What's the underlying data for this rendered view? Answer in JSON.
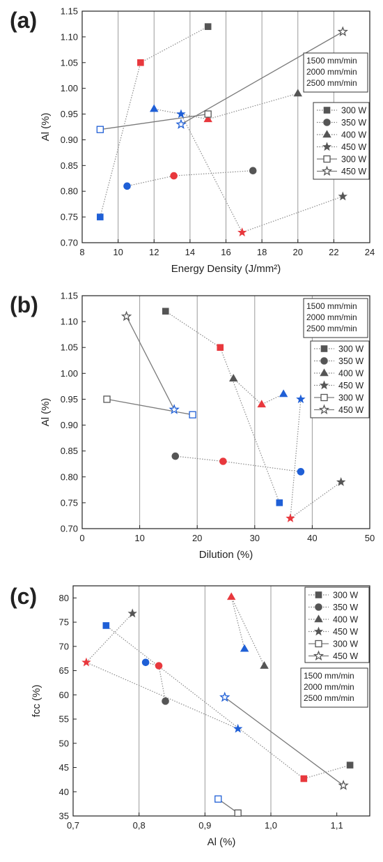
{
  "legend_power": [
    {
      "label": "300 W",
      "marker": "square"
    },
    {
      "label": "350 W",
      "marker": "circle"
    },
    {
      "label": "400 W",
      "marker": "triangle"
    },
    {
      "label": "450 W",
      "marker": "star"
    },
    {
      "label": "300 W",
      "marker": "square-open"
    },
    {
      "label": "450 W",
      "marker": "star-open"
    }
  ],
  "legend_speed": [
    {
      "label": "1500 mm/min",
      "color": "#222222"
    },
    {
      "label": "2000 mm/min",
      "color": "#e8383d"
    },
    {
      "label": "2500 mm/min",
      "color": "#1f5fd6"
    }
  ],
  "chart_data": [
    {
      "panel": "(a)",
      "type": "scatter",
      "xlabel": "Energy Density (J/mm²)",
      "ylabel": "Al (%)",
      "xlim": [
        8,
        24
      ],
      "ylim": [
        0.7,
        1.15
      ],
      "xticks": [
        "8",
        "10",
        "12",
        "14",
        "16",
        "18",
        "20",
        "22",
        "24"
      ],
      "yticks": [
        "0.70",
        "0.75",
        "0.80",
        "0.85",
        "0.90",
        "0.95",
        "1.00",
        "1.05",
        "1.10",
        "1.15"
      ],
      "grid": "vertical",
      "points": [
        {
          "x": 15.0,
          "y": 1.12,
          "marker": "square",
          "color": "#555555"
        },
        {
          "x": 11.25,
          "y": 1.05,
          "marker": "square",
          "color": "#e8383d"
        },
        {
          "x": 9.0,
          "y": 0.75,
          "marker": "square",
          "color": "#1f5fd6"
        },
        {
          "x": 17.5,
          "y": 0.84,
          "marker": "circle",
          "color": "#555555"
        },
        {
          "x": 13.1,
          "y": 0.83,
          "marker": "circle",
          "color": "#e8383d"
        },
        {
          "x": 10.5,
          "y": 0.81,
          "marker": "circle",
          "color": "#1f5fd6"
        },
        {
          "x": 20.0,
          "y": 0.99,
          "marker": "triangle",
          "color": "#555555"
        },
        {
          "x": 15.0,
          "y": 0.94,
          "marker": "triangle",
          "color": "#e8383d"
        },
        {
          "x": 12.0,
          "y": 0.96,
          "marker": "triangle",
          "color": "#1f5fd6"
        },
        {
          "x": 22.5,
          "y": 0.79,
          "marker": "star",
          "color": "#555555"
        },
        {
          "x": 16.9,
          "y": 0.72,
          "marker": "star",
          "color": "#e8383d"
        },
        {
          "x": 13.5,
          "y": 0.95,
          "marker": "star",
          "color": "#1f5fd6"
        },
        {
          "x": 15.0,
          "y": 0.95,
          "marker": "square-open",
          "color": "#555555"
        },
        {
          "x": 9.0,
          "y": 0.92,
          "marker": "square-open",
          "color": "#1f5fd6"
        },
        {
          "x": 22.5,
          "y": 1.11,
          "marker": "star-open",
          "color": "#555555"
        },
        {
          "x": 13.5,
          "y": 0.93,
          "marker": "star-open",
          "color": "#1f5fd6"
        }
      ],
      "lines": [
        {
          "pts": [
            [
              15.0,
              1.12
            ],
            [
              11.25,
              1.05
            ],
            [
              9.0,
              0.75
            ]
          ],
          "style": "dotted"
        },
        {
          "pts": [
            [
              17.5,
              0.84
            ],
            [
              13.1,
              0.83
            ],
            [
              10.5,
              0.81
            ]
          ],
          "style": "dotted"
        },
        {
          "pts": [
            [
              20.0,
              0.99
            ],
            [
              15.0,
              0.94
            ],
            [
              12.0,
              0.96
            ]
          ],
          "style": "dotted"
        },
        {
          "pts": [
            [
              22.5,
              0.79
            ],
            [
              16.9,
              0.72
            ],
            [
              13.5,
              0.95
            ]
          ],
          "style": "dotted"
        },
        {
          "pts": [
            [
              15.0,
              0.95
            ],
            [
              9.0,
              0.92
            ]
          ],
          "style": "solid"
        },
        {
          "pts": [
            [
              22.5,
              1.11
            ],
            [
              13.5,
              0.93
            ]
          ],
          "style": "solid"
        }
      ]
    },
    {
      "panel": "(b)",
      "type": "scatter",
      "xlabel": "Dilution (%)",
      "ylabel": "Al (%)",
      "xlim": [
        0,
        50
      ],
      "ylim": [
        0.7,
        1.15
      ],
      "xticks": [
        "0",
        "10",
        "20",
        "30",
        "40",
        "50"
      ],
      "yticks": [
        "0.70",
        "0.75",
        "0.80",
        "0.85",
        "0.90",
        "0.95",
        "1.00",
        "1.05",
        "1.10",
        "1.15"
      ],
      "grid": "vertical",
      "points": [
        {
          "x": 14.5,
          "y": 1.12,
          "marker": "square",
          "color": "#555555"
        },
        {
          "x": 24.0,
          "y": 1.05,
          "marker": "square",
          "color": "#e8383d"
        },
        {
          "x": 34.3,
          "y": 0.75,
          "marker": "square",
          "color": "#1f5fd6"
        },
        {
          "x": 16.2,
          "y": 0.84,
          "marker": "circle",
          "color": "#555555"
        },
        {
          "x": 24.5,
          "y": 0.83,
          "marker": "circle",
          "color": "#e8383d"
        },
        {
          "x": 38.0,
          "y": 0.81,
          "marker": "circle",
          "color": "#1f5fd6"
        },
        {
          "x": 26.3,
          "y": 0.99,
          "marker": "triangle",
          "color": "#555555"
        },
        {
          "x": 31.2,
          "y": 0.94,
          "marker": "triangle",
          "color": "#e8383d"
        },
        {
          "x": 35.0,
          "y": 0.96,
          "marker": "triangle",
          "color": "#1f5fd6"
        },
        {
          "x": 45.0,
          "y": 0.79,
          "marker": "star",
          "color": "#555555"
        },
        {
          "x": 36.2,
          "y": 0.72,
          "marker": "star",
          "color": "#e8383d"
        },
        {
          "x": 38.0,
          "y": 0.95,
          "marker": "star",
          "color": "#1f5fd6"
        },
        {
          "x": 4.3,
          "y": 0.95,
          "marker": "square-open",
          "color": "#555555"
        },
        {
          "x": 19.2,
          "y": 0.92,
          "marker": "square-open",
          "color": "#1f5fd6"
        },
        {
          "x": 7.7,
          "y": 1.11,
          "marker": "star-open",
          "color": "#555555"
        },
        {
          "x": 16.0,
          "y": 0.93,
          "marker": "star-open",
          "color": "#1f5fd6"
        }
      ],
      "lines": [
        {
          "pts": [
            [
              14.5,
              1.12
            ],
            [
              24.0,
              1.05
            ],
            [
              34.3,
              0.75
            ]
          ],
          "style": "dotted"
        },
        {
          "pts": [
            [
              16.2,
              0.84
            ],
            [
              24.5,
              0.83
            ],
            [
              38.0,
              0.81
            ]
          ],
          "style": "dotted"
        },
        {
          "pts": [
            [
              26.3,
              0.99
            ],
            [
              31.2,
              0.94
            ],
            [
              35.0,
              0.96
            ]
          ],
          "style": "dotted"
        },
        {
          "pts": [
            [
              45.0,
              0.79
            ],
            [
              36.2,
              0.72
            ],
            [
              38.0,
              0.95
            ]
          ],
          "style": "dotted"
        },
        {
          "pts": [
            [
              4.3,
              0.95
            ],
            [
              19.2,
              0.92
            ]
          ],
          "style": "solid"
        },
        {
          "pts": [
            [
              7.7,
              1.11
            ],
            [
              16.0,
              0.93
            ]
          ],
          "style": "solid"
        }
      ]
    },
    {
      "panel": "(c)",
      "type": "scatter",
      "xlabel": "Al (%)",
      "ylabel": "fcc (%)",
      "xlim": [
        0.7,
        1.15
      ],
      "ylim": [
        35,
        82.5
      ],
      "xticks": [
        "0,7",
        "0,8",
        "0,9",
        "1,0",
        "1,1"
      ],
      "xtick_values": [
        0.7,
        0.8,
        0.9,
        1.0,
        1.1
      ],
      "yticks": [
        "35",
        "40",
        "45",
        "50",
        "55",
        "60",
        "65",
        "70",
        "75",
        "80"
      ],
      "ytick_values": [
        35,
        40,
        45,
        50,
        55,
        60,
        65,
        70,
        75,
        80
      ],
      "grid": "vertical",
      "points": [
        {
          "x": 1.12,
          "y": 45.5,
          "marker": "square",
          "color": "#555555"
        },
        {
          "x": 1.05,
          "y": 42.7,
          "marker": "square",
          "color": "#e8383d"
        },
        {
          "x": 0.75,
          "y": 74.3,
          "marker": "square",
          "color": "#1f5fd6"
        },
        {
          "x": 0.84,
          "y": 58.7,
          "marker": "circle",
          "color": "#555555"
        },
        {
          "x": 0.83,
          "y": 66.0,
          "marker": "circle",
          "color": "#e8383d"
        },
        {
          "x": 0.81,
          "y": 66.7,
          "marker": "circle",
          "color": "#1f5fd6"
        },
        {
          "x": 0.99,
          "y": 66.0,
          "marker": "triangle",
          "color": "#555555"
        },
        {
          "x": 0.94,
          "y": 80.2,
          "marker": "triangle",
          "color": "#e8383d"
        },
        {
          "x": 0.96,
          "y": 69.5,
          "marker": "triangle",
          "color": "#1f5fd6"
        },
        {
          "x": 0.79,
          "y": 76.8,
          "marker": "star",
          "color": "#555555"
        },
        {
          "x": 0.72,
          "y": 66.7,
          "marker": "star",
          "color": "#e8383d"
        },
        {
          "x": 0.95,
          "y": 53.0,
          "marker": "star",
          "color": "#1f5fd6"
        },
        {
          "x": 0.95,
          "y": 35.6,
          "marker": "square-open",
          "color": "#555555"
        },
        {
          "x": 0.92,
          "y": 38.5,
          "marker": "square-open",
          "color": "#1f5fd6"
        },
        {
          "x": 1.11,
          "y": 41.3,
          "marker": "star-open",
          "color": "#555555"
        },
        {
          "x": 0.93,
          "y": 59.5,
          "marker": "star-open",
          "color": "#1f5fd6"
        }
      ],
      "lines": [
        {
          "pts": [
            [
              1.12,
              45.5
            ],
            [
              1.05,
              42.7
            ],
            [
              0.75,
              74.3
            ]
          ],
          "style": "dotted"
        },
        {
          "pts": [
            [
              0.84,
              58.7
            ],
            [
              0.83,
              66.0
            ],
            [
              0.81,
              66.7
            ]
          ],
          "style": "dotted"
        },
        {
          "pts": [
            [
              0.99,
              66.0
            ],
            [
              0.94,
              80.2
            ],
            [
              0.96,
              69.5
            ]
          ],
          "style": "dotted"
        },
        {
          "pts": [
            [
              0.79,
              76.8
            ],
            [
              0.72,
              66.7
            ],
            [
              0.95,
              53.0
            ]
          ],
          "style": "dotted"
        },
        {
          "pts": [
            [
              0.95,
              35.6
            ],
            [
              0.92,
              38.5
            ]
          ],
          "style": "solid"
        },
        {
          "pts": [
            [
              1.11,
              41.3
            ],
            [
              0.93,
              59.5
            ]
          ],
          "style": "solid"
        }
      ]
    }
  ]
}
